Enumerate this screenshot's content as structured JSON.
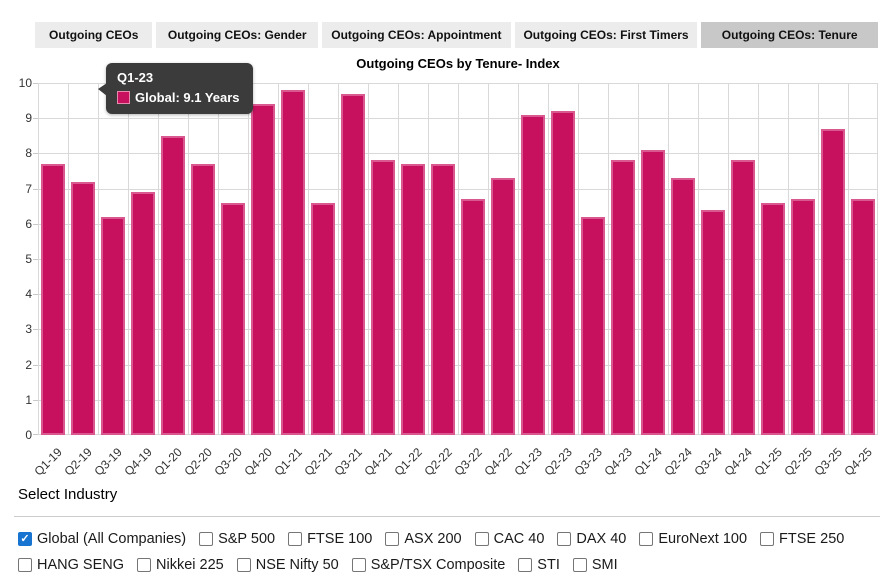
{
  "tabs": [
    {
      "label": "Outgoing CEOs",
      "active": false
    },
    {
      "label": "Outgoing CEOs: Gender",
      "active": false
    },
    {
      "label": "Outgoing CEOs: Appointment",
      "active": false
    },
    {
      "label": "Outgoing CEOs: First Timers",
      "active": false
    },
    {
      "label": "Outgoing CEOs: Tenure",
      "active": true
    }
  ],
  "chart_data": {
    "type": "bar",
    "title": "Outgoing CEOs by Tenure- Index",
    "categories": [
      "Q1-19",
      "Q2-19",
      "Q3-19",
      "Q4-19",
      "Q1-20",
      "Q2-20",
      "Q3-20",
      "Q4-20",
      "Q1-21",
      "Q2-21",
      "Q3-21",
      "Q4-21",
      "Q1-22",
      "Q2-22",
      "Q3-22",
      "Q4-22",
      "Q1-23",
      "Q2-23",
      "Q3-23",
      "Q4-23",
      "Q1-24",
      "Q2-24",
      "Q3-24",
      "Q4-24",
      "Q1-25",
      "Q2-25",
      "Q3-25",
      "Q4-25"
    ],
    "series": [
      {
        "name": "Global",
        "values": [
          7.7,
          7.2,
          6.2,
          6.9,
          8.5,
          7.7,
          6.6,
          9.4,
          9.8,
          6.6,
          9.7,
          7.8,
          7.7,
          7.7,
          6.7,
          7.3,
          9.1,
          9.2,
          6.2,
          7.8,
          8.1,
          7.3,
          6.4,
          7.8,
          6.6,
          6.7,
          8.7,
          6.7
        ]
      }
    ],
    "xlabel": "",
    "ylabel": "",
    "ylim": [
      0,
      10
    ],
    "ytick_step": 1,
    "grid": true,
    "legend": "none",
    "unit": "Years"
  },
  "tooltip": {
    "title": "Q1-23",
    "value_text": "Global: 9.1 Years",
    "swatch_color": "#c8115e"
  },
  "industry": {
    "heading": "Select Industry",
    "options_row1": [
      {
        "label": "Global (All Companies)",
        "checked": true
      },
      {
        "label": "S&P 500",
        "checked": false
      },
      {
        "label": "FTSE 100",
        "checked": false
      },
      {
        "label": "ASX 200",
        "checked": false
      },
      {
        "label": "CAC 40",
        "checked": false
      },
      {
        "label": "DAX 40",
        "checked": false
      },
      {
        "label": "EuroNext 100",
        "checked": false
      },
      {
        "label": "FTSE 250",
        "checked": false
      }
    ],
    "options_row2": [
      {
        "label": "HANG SENG",
        "checked": false
      },
      {
        "label": "Nikkei 225",
        "checked": false
      },
      {
        "label": "NSE Nifty 50",
        "checked": false
      },
      {
        "label": "S&P/TSX Composite",
        "checked": false
      },
      {
        "label": "STI",
        "checked": false
      },
      {
        "label": "SMI",
        "checked": false
      }
    ]
  },
  "colors": {
    "bar_fill": "#c8115e",
    "bar_border": "#da5890",
    "grid": "#d9d9d9",
    "tab_bg": "#ececec",
    "tab_active_bg": "#c8c8c8",
    "tooltip_bg": "#3b3b3b",
    "checkbox_checked": "#1774d1"
  },
  "check_glyph": "✓"
}
